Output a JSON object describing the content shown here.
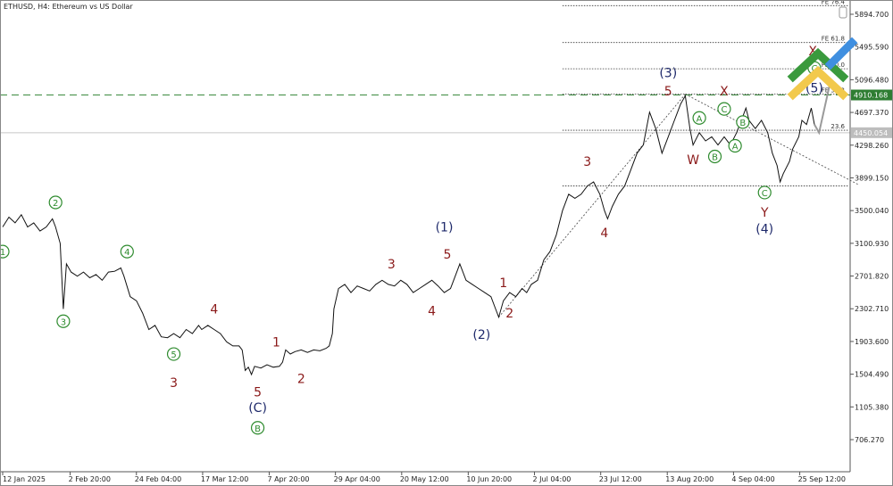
{
  "chart_data": {
    "type": "line",
    "title": "ETHUSD, H4:  Ethereum vs US Dollar",
    "xlabel": "",
    "ylabel": "",
    "ylim": [
      500,
      6000
    ],
    "grid": false,
    "y_ticks": [
      5894.7,
      5495.59,
      5096.48,
      4697.37,
      4298.26,
      3899.15,
      3500.04,
      3100.93,
      2701.82,
      2302.71,
      1903.6,
      1504.49,
      1105.38,
      706.27
    ],
    "x_ticks": [
      {
        "label": "12 Jan 2025",
        "t": 0
      },
      {
        "label": "2 Feb 20:00",
        "t": 21.7
      },
      {
        "label": "24 Feb 04:00",
        "t": 43
      },
      {
        "label": "17 Mar 12:00",
        "t": 64.3
      },
      {
        "label": "7 Apr 20:00",
        "t": 85.7
      },
      {
        "label": "29 Apr 04:00",
        "t": 107
      },
      {
        "label": "20 May 12:00",
        "t": 128.3
      },
      {
        "label": "10 Jun 20:00",
        "t": 149.7
      },
      {
        "label": "2 Jul 04:00",
        "t": 171
      },
      {
        "label": "23 Jul 12:00",
        "t": 192.3
      },
      {
        "label": "13 Aug 20:00",
        "t": 213.7
      },
      {
        "label": "4 Sep 04:00",
        "t": 235
      },
      {
        "label": "25 Sep 12:00",
        "t": 256.3
      }
    ],
    "price": [
      {
        "t": 0,
        "v": 3300
      },
      {
        "t": 2,
        "v": 3420
      },
      {
        "t": 4,
        "v": 3350
      },
      {
        "t": 6,
        "v": 3450
      },
      {
        "t": 8,
        "v": 3300
      },
      {
        "t": 10,
        "v": 3350
      },
      {
        "t": 12,
        "v": 3250
      },
      {
        "t": 14,
        "v": 3300
      },
      {
        "t": 16,
        "v": 3400
      },
      {
        "t": 17,
        "v": 3300
      },
      {
        "t": 18.5,
        "v": 3100
      },
      {
        "t": 19.5,
        "v": 2300
      },
      {
        "t": 20.5,
        "v": 2850
      },
      {
        "t": 22,
        "v": 2750
      },
      {
        "t": 24,
        "v": 2700
      },
      {
        "t": 26,
        "v": 2750
      },
      {
        "t": 28,
        "v": 2680
      },
      {
        "t": 30,
        "v": 2720
      },
      {
        "t": 32,
        "v": 2650
      },
      {
        "t": 34,
        "v": 2750
      },
      {
        "t": 36,
        "v": 2760
      },
      {
        "t": 38,
        "v": 2800
      },
      {
        "t": 39,
        "v": 2700
      },
      {
        "t": 41,
        "v": 2450
      },
      {
        "t": 43,
        "v": 2400
      },
      {
        "t": 45,
        "v": 2250
      },
      {
        "t": 47,
        "v": 2050
      },
      {
        "t": 49,
        "v": 2100
      },
      {
        "t": 51,
        "v": 1960
      },
      {
        "t": 53,
        "v": 1950
      },
      {
        "t": 55,
        "v": 2000
      },
      {
        "t": 57,
        "v": 1950
      },
      {
        "t": 59,
        "v": 2050
      },
      {
        "t": 61,
        "v": 2000
      },
      {
        "t": 63,
        "v": 2100
      },
      {
        "t": 64,
        "v": 2050
      },
      {
        "t": 66,
        "v": 2100
      },
      {
        "t": 68,
        "v": 2050
      },
      {
        "t": 70,
        "v": 2000
      },
      {
        "t": 72,
        "v": 1900
      },
      {
        "t": 74,
        "v": 1850
      },
      {
        "t": 76,
        "v": 1850
      },
      {
        "t": 77,
        "v": 1800
      },
      {
        "t": 78,
        "v": 1550
      },
      {
        "t": 79,
        "v": 1590
      },
      {
        "t": 80,
        "v": 1500
      },
      {
        "t": 81,
        "v": 1600
      },
      {
        "t": 83,
        "v": 1580
      },
      {
        "t": 85,
        "v": 1620
      },
      {
        "t": 87,
        "v": 1590
      },
      {
        "t": 89,
        "v": 1600
      },
      {
        "t": 90,
        "v": 1650
      },
      {
        "t": 91,
        "v": 1800
      },
      {
        "t": 92.5,
        "v": 1750
      },
      {
        "t": 94,
        "v": 1780
      },
      {
        "t": 96,
        "v": 1800
      },
      {
        "t": 98,
        "v": 1770
      },
      {
        "t": 100,
        "v": 1800
      },
      {
        "t": 102,
        "v": 1790
      },
      {
        "t": 104,
        "v": 1820
      },
      {
        "t": 105,
        "v": 1850
      },
      {
        "t": 106,
        "v": 2000
      },
      {
        "t": 106.5,
        "v": 2300
      },
      {
        "t": 108,
        "v": 2550
      },
      {
        "t": 110,
        "v": 2600
      },
      {
        "t": 112,
        "v": 2500
      },
      {
        "t": 114,
        "v": 2580
      },
      {
        "t": 116,
        "v": 2550
      },
      {
        "t": 118,
        "v": 2520
      },
      {
        "t": 120,
        "v": 2600
      },
      {
        "t": 122,
        "v": 2650
      },
      {
        "t": 124,
        "v": 2600
      },
      {
        "t": 126,
        "v": 2580
      },
      {
        "t": 128,
        "v": 2650
      },
      {
        "t": 130,
        "v": 2600
      },
      {
        "t": 132,
        "v": 2500
      },
      {
        "t": 134,
        "v": 2550
      },
      {
        "t": 136,
        "v": 2600
      },
      {
        "t": 138,
        "v": 2650
      },
      {
        "t": 140,
        "v": 2580
      },
      {
        "t": 142,
        "v": 2500
      },
      {
        "t": 144,
        "v": 2550
      },
      {
        "t": 146,
        "v": 2750
      },
      {
        "t": 147,
        "v": 2850
      },
      {
        "t": 149,
        "v": 2650
      },
      {
        "t": 151,
        "v": 2600
      },
      {
        "t": 153,
        "v": 2550
      },
      {
        "t": 155,
        "v": 2500
      },
      {
        "t": 157,
        "v": 2450
      },
      {
        "t": 158.5,
        "v": 2300
      },
      {
        "t": 159.5,
        "v": 2200
      },
      {
        "t": 161,
        "v": 2400
      },
      {
        "t": 163,
        "v": 2500
      },
      {
        "t": 165,
        "v": 2450
      },
      {
        "t": 167,
        "v": 2550
      },
      {
        "t": 168.5,
        "v": 2500
      },
      {
        "t": 170,
        "v": 2600
      },
      {
        "t": 172,
        "v": 2650
      },
      {
        "t": 174,
        "v": 2900
      },
      {
        "t": 176,
        "v": 3000
      },
      {
        "t": 178,
        "v": 3200
      },
      {
        "t": 180,
        "v": 3500
      },
      {
        "t": 182,
        "v": 3700
      },
      {
        "t": 184,
        "v": 3650
      },
      {
        "t": 186,
        "v": 3700
      },
      {
        "t": 188,
        "v": 3800
      },
      {
        "t": 190,
        "v": 3850
      },
      {
        "t": 192,
        "v": 3700
      },
      {
        "t": 193.5,
        "v": 3500
      },
      {
        "t": 194.5,
        "v": 3400
      },
      {
        "t": 196,
        "v": 3550
      },
      {
        "t": 198,
        "v": 3700
      },
      {
        "t": 200,
        "v": 3800
      },
      {
        "t": 202,
        "v": 4000
      },
      {
        "t": 204,
        "v": 4200
      },
      {
        "t": 206,
        "v": 4300
      },
      {
        "t": 208,
        "v": 4700
      },
      {
        "t": 210,
        "v": 4500
      },
      {
        "t": 212,
        "v": 4200
      },
      {
        "t": 214,
        "v": 4400
      },
      {
        "t": 216,
        "v": 4600
      },
      {
        "t": 218,
        "v": 4800
      },
      {
        "t": 219.5,
        "v": 4900
      },
      {
        "t": 221,
        "v": 4500
      },
      {
        "t": 222,
        "v": 4300
      },
      {
        "t": 224,
        "v": 4450
      },
      {
        "t": 226,
        "v": 4350
      },
      {
        "t": 228,
        "v": 4400
      },
      {
        "t": 230,
        "v": 4300
      },
      {
        "t": 232,
        "v": 4400
      },
      {
        "t": 234,
        "v": 4300
      },
      {
        "t": 236,
        "v": 4450
      },
      {
        "t": 238,
        "v": 4650
      },
      {
        "t": 239,
        "v": 4750
      },
      {
        "t": 240,
        "v": 4600
      },
      {
        "t": 242,
        "v": 4500
      },
      {
        "t": 244,
        "v": 4600
      },
      {
        "t": 246,
        "v": 4450
      },
      {
        "t": 247.5,
        "v": 4200
      },
      {
        "t": 249,
        "v": 4050
      },
      {
        "t": 250,
        "v": 3850
      },
      {
        "t": 251,
        "v": 3950
      },
      {
        "t": 253,
        "v": 4100
      },
      {
        "t": 254,
        "v": 4250
      },
      {
        "t": 256,
        "v": 4400
      },
      {
        "t": 257,
        "v": 4600
      },
      {
        "t": 258.5,
        "v": 4550
      },
      {
        "t": 260,
        "v": 4750
      },
      {
        "t": 261,
        "v": 4550
      }
    ],
    "projection": [
      {
        "t": 261,
        "v": 4550
      },
      {
        "t": 262.5,
        "v": 4450
      },
      {
        "t": 266,
        "v": 5050
      }
    ],
    "current_price": {
      "label": "4450.054",
      "v": 4450.054,
      "color": "#9e9e9e"
    },
    "level_line": {
      "label": "4910.168",
      "v": 4910.168,
      "color": "#3b8a3e"
    },
    "fib_levels": [
      {
        "label": "FE 76.4",
        "v": 6000,
        "t_start": 180
      },
      {
        "label": "FE 61.8",
        "v": 5550,
        "t_start": 180
      },
      {
        "label": "FE 50.0",
        "v": 5230,
        "t_start": 180
      },
      {
        "label": "FE 38.2",
        "v": 4920,
        "t_start": 180
      },
      {
        "label": "23.6",
        "v": 4480,
        "t_start": 180
      },
      {
        "label": "",
        "v": 3800,
        "t_start": 180
      }
    ],
    "trend_lines": [
      {
        "from": {
          "t": 159.5,
          "v": 2200
        },
        "to": {
          "t": 219.5,
          "v": 4920
        }
      },
      {
        "from": {
          "t": 219.5,
          "v": 4920
        },
        "to": {
          "t": 275,
          "v": 3820
        }
      }
    ],
    "wave_labels": [
      {
        "text": "1",
        "t": 0,
        "v": 3000,
        "style": "circle-green"
      },
      {
        "text": "2",
        "t": 17,
        "v": 3600,
        "style": "circle-green"
      },
      {
        "text": "3",
        "t": 19.5,
        "v": 2150,
        "style": "circle-green"
      },
      {
        "text": "4",
        "t": 40,
        "v": 3000,
        "style": "circle-green"
      },
      {
        "text": "5",
        "t": 55,
        "v": 1750,
        "style": "circle-green"
      },
      {
        "text": "3",
        "t": 55,
        "v": 1400,
        "style": "red"
      },
      {
        "text": "4",
        "t": 68,
        "v": 2300,
        "style": "red"
      },
      {
        "text": "1",
        "t": 88,
        "v": 1900,
        "style": "red"
      },
      {
        "text": "2",
        "t": 96,
        "v": 1450,
        "style": "red"
      },
      {
        "text": "5",
        "t": 82,
        "v": 1290,
        "style": "red"
      },
      {
        "text": "(C)",
        "t": 82,
        "v": 1100,
        "style": "navy"
      },
      {
        "text": "B",
        "t": 82,
        "v": 850,
        "style": "circle-green"
      },
      {
        "text": "3",
        "t": 125,
        "v": 2850,
        "style": "red"
      },
      {
        "text": "(1)",
        "t": 142,
        "v": 3300,
        "style": "navy"
      },
      {
        "text": "5",
        "t": 143,
        "v": 2970,
        "style": "red"
      },
      {
        "text": "4",
        "t": 138,
        "v": 2280,
        "style": "red"
      },
      {
        "text": "1",
        "t": 161,
        "v": 2620,
        "style": "red"
      },
      {
        "text": "2",
        "t": 163,
        "v": 2250,
        "style": "red"
      },
      {
        "text": "(2)",
        "t": 154,
        "v": 1990,
        "style": "navy"
      },
      {
        "text": "3",
        "t": 188,
        "v": 4100,
        "style": "red"
      },
      {
        "text": "4",
        "t": 193.5,
        "v": 3230,
        "style": "red"
      },
      {
        "text": "(3)",
        "t": 214,
        "v": 5180,
        "style": "navy"
      },
      {
        "text": "5",
        "t": 214,
        "v": 4960,
        "style": "red"
      },
      {
        "text": "W",
        "t": 222,
        "v": 4120,
        "style": "red"
      },
      {
        "text": "A",
        "t": 224,
        "v": 4630,
        "style": "circle-green"
      },
      {
        "text": "B",
        "t": 229,
        "v": 4160,
        "style": "circle-green"
      },
      {
        "text": "X",
        "t": 232,
        "v": 4960,
        "style": "red"
      },
      {
        "text": "C",
        "t": 232,
        "v": 4740,
        "style": "circle-green"
      },
      {
        "text": "B",
        "t": 238,
        "v": 4580,
        "style": "circle-green"
      },
      {
        "text": "A",
        "t": 235.5,
        "v": 4290,
        "style": "circle-green"
      },
      {
        "text": "C",
        "t": 245,
        "v": 3720,
        "style": "circle-green"
      },
      {
        "text": "Y",
        "t": 245,
        "v": 3480,
        "style": "red"
      },
      {
        "text": "(4)",
        "t": 245,
        "v": 3280,
        "style": "navy"
      },
      {
        "text": "X",
        "t": 260.5,
        "v": 5450,
        "style": "red"
      },
      {
        "text": "C",
        "t": 261,
        "v": 5240,
        "style": "circle-green"
      },
      {
        "text": "(5)",
        "t": 261,
        "v": 5000,
        "style": "navy"
      }
    ]
  }
}
